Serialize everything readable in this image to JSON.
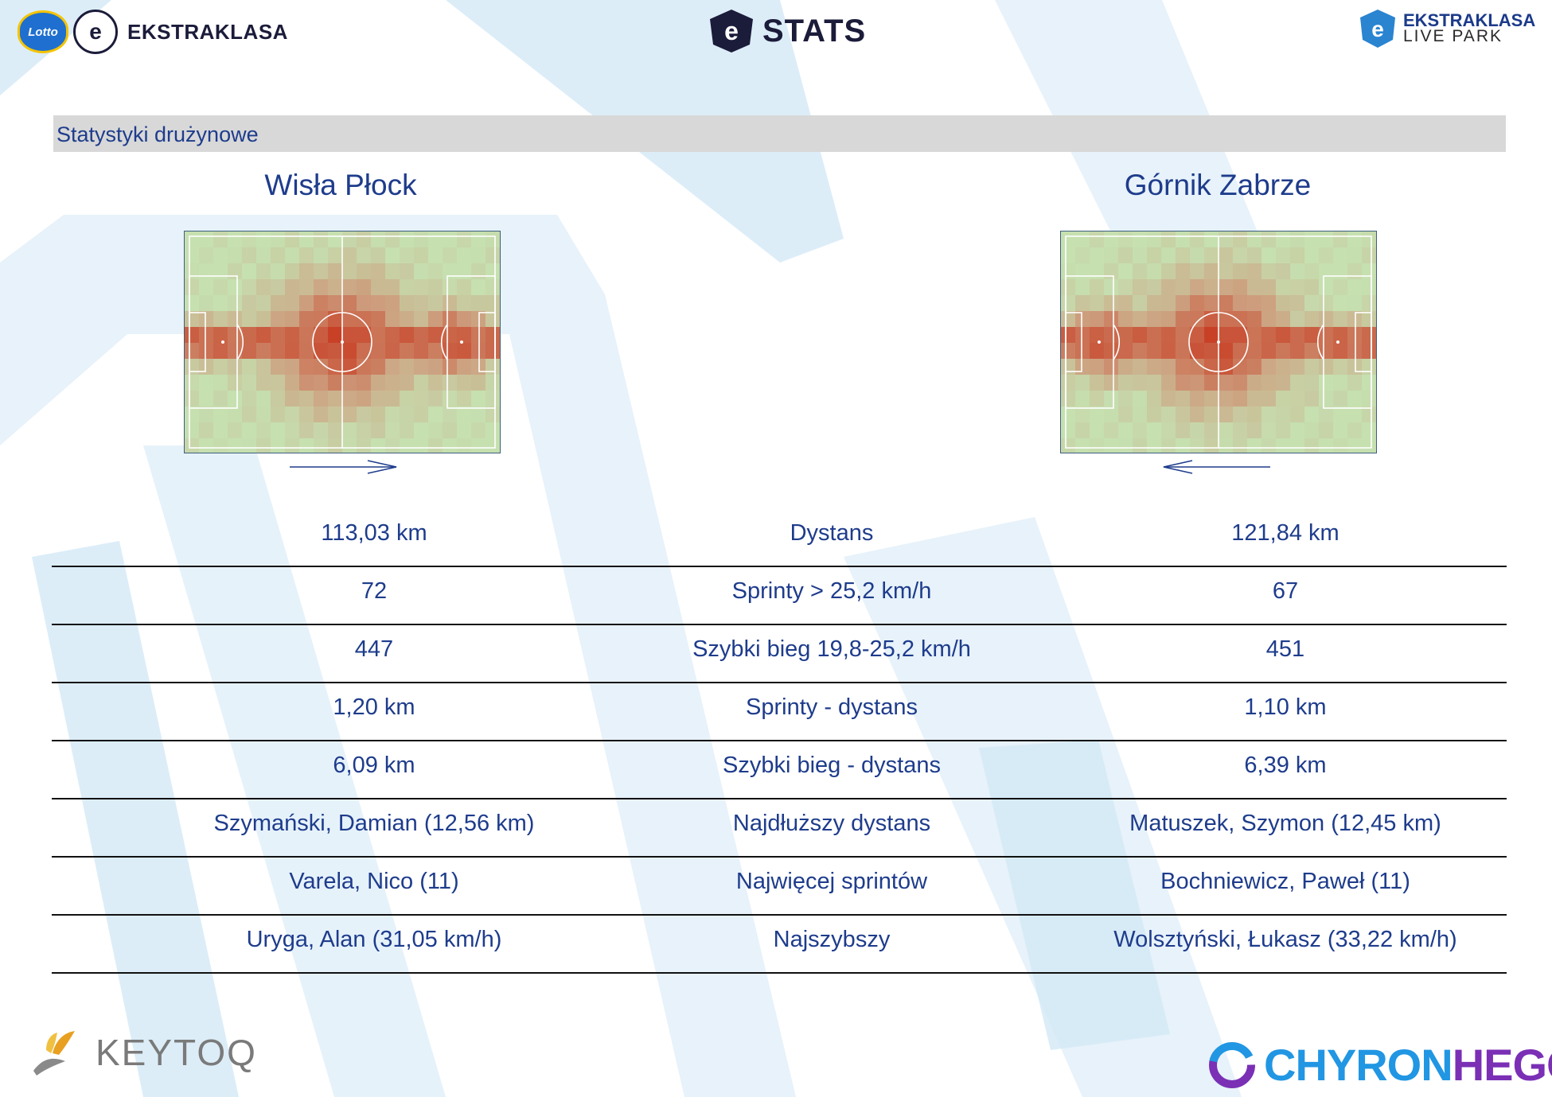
{
  "header": {
    "lotto_badge": "Lotto",
    "league_logo_left": "EKSTRAKLASA",
    "center_logo": "STATS",
    "right_logo_line1": "EKSTRAKLASA",
    "right_logo_line2": "LIVE PARK"
  },
  "section": {
    "title": "Statystyki drużynowe"
  },
  "teams": {
    "home": {
      "name": "Wisła Płock",
      "attack_direction": "right"
    },
    "away": {
      "name": "Górnik Zabrze",
      "attack_direction": "left"
    }
  },
  "stats": [
    {
      "home": "113,03 km",
      "label": "Dystans",
      "away": "121,84 km"
    },
    {
      "home": "72",
      "label": "Sprinty > 25,2 km/h",
      "away": "67"
    },
    {
      "home": "447",
      "label": "Szybki bieg 19,8-25,2 km/h",
      "away": "451"
    },
    {
      "home": "1,20 km",
      "label": "Sprinty - dystans",
      "away": "1,10 km"
    },
    {
      "home": "6,09 km",
      "label": "Szybki bieg - dystans",
      "away": "6,39 km"
    },
    {
      "home": "Szymański, Damian (12,56 km)",
      "label": "Najdłuższy dystans",
      "away": "Matuszek, Szymon (12,45 km)"
    },
    {
      "home": "Varela, Nico (11)",
      "label": "Najwięcej sprintów",
      "away": "Bochniewicz, Paweł (11)"
    },
    {
      "home": "Uryga, Alan (31,05 km/h)",
      "label": "Najszybszy",
      "away": "Wolsztyński, Łukasz (33,22 km/h)"
    }
  ],
  "footer": {
    "left_logo": "KEYTOQ",
    "right_logo_part1": "CHYRON",
    "right_logo_part2": "HEGO"
  },
  "colors": {
    "accent": "#1e3c8c",
    "section_bar": "#d8d8d8",
    "heat_high": "#c8321a",
    "heat_low": "#c6dfb0"
  }
}
